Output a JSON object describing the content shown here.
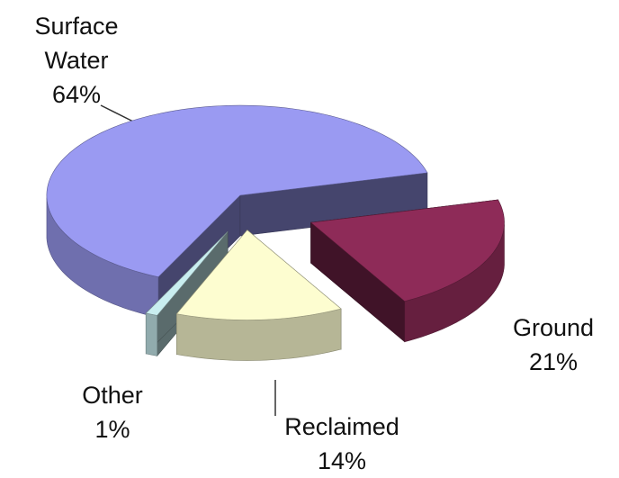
{
  "chart_data": {
    "type": "pie",
    "categories": [
      "Surface Water",
      "Ground",
      "Reclaimed",
      "Other"
    ],
    "values": [
      64,
      21,
      14,
      1
    ],
    "value_labels": [
      "64%",
      "21%",
      "14%",
      "1%"
    ],
    "colors": [
      "#9a9af2",
      "#8e2b58",
      "#fdfdd0",
      "#c9eef0"
    ]
  }
}
